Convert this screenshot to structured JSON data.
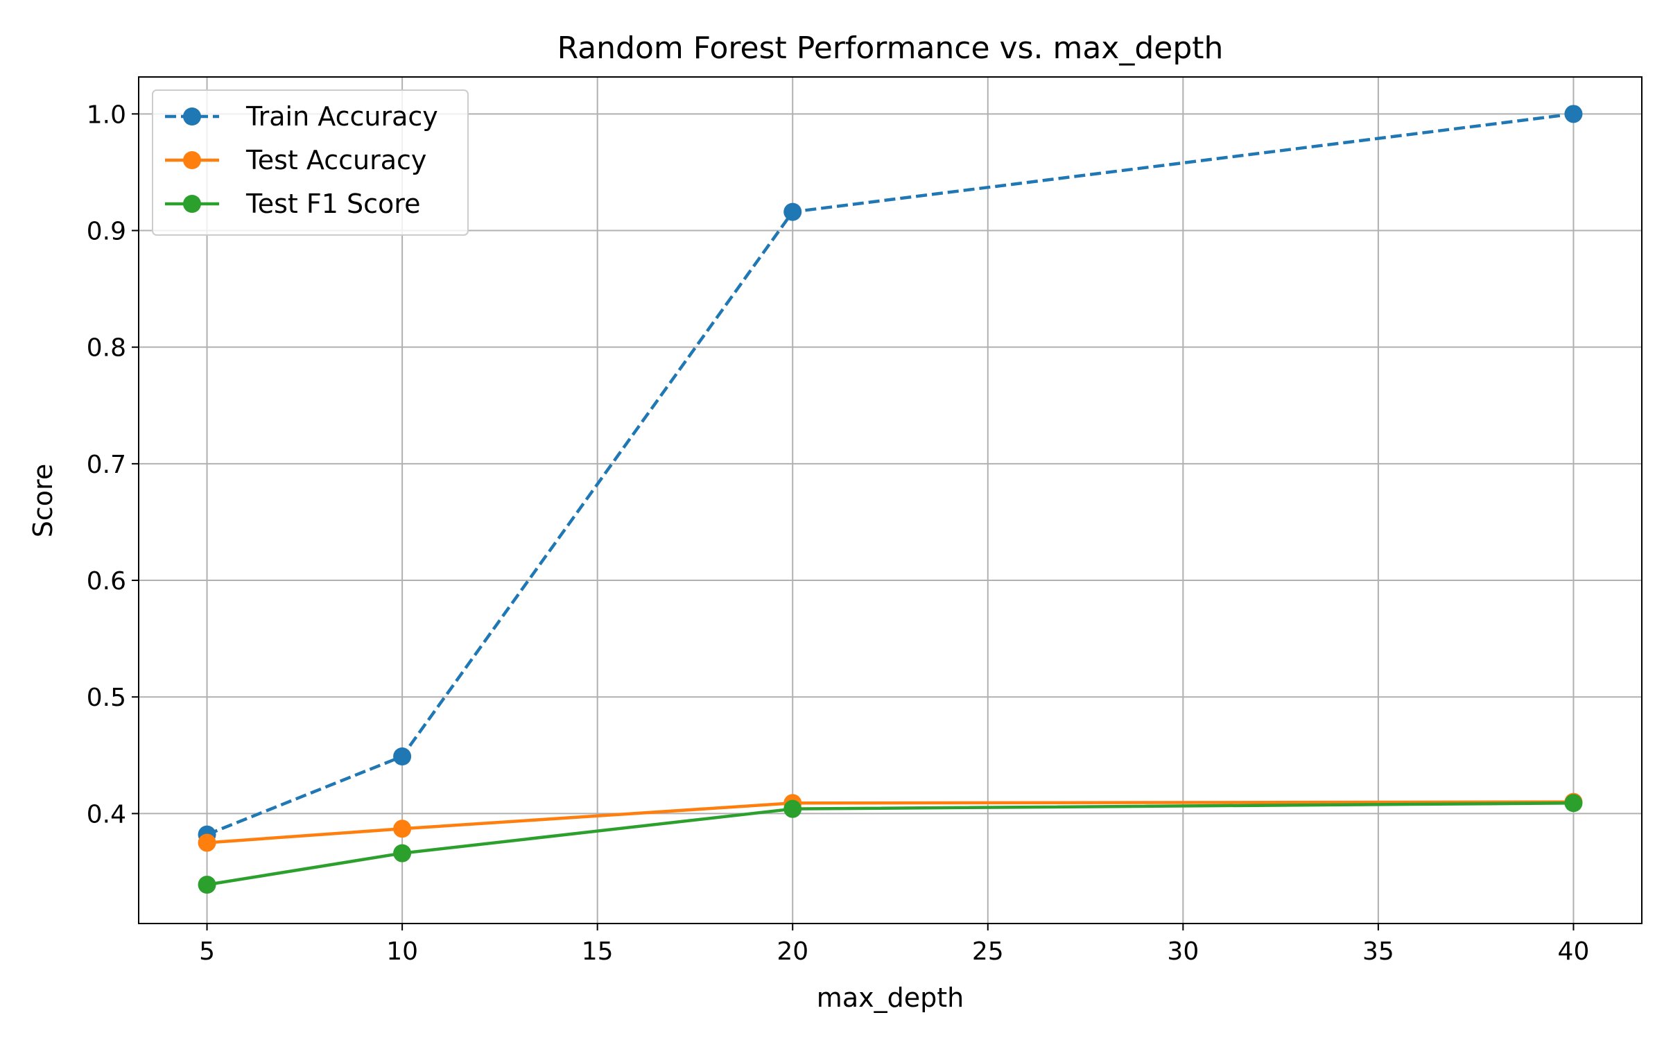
{
  "chart_data": {
    "type": "line",
    "title": "Random Forest Performance vs. max_depth",
    "xlabel": "max_depth",
    "ylabel": "Score",
    "x": [
      5,
      10,
      20,
      40
    ],
    "xlim": [
      3.25,
      41.75
    ],
    "ylim": [
      0.3057,
      1.0317
    ],
    "xticks": [
      5,
      10,
      15,
      20,
      25,
      30,
      35,
      40
    ],
    "yticks": [
      0.4,
      0.5,
      0.6,
      0.7,
      0.8,
      0.9,
      1.0
    ],
    "xtick_labels": [
      "5",
      "10",
      "15",
      "20",
      "25",
      "30",
      "35",
      "40"
    ],
    "ytick_labels": [
      "0.4",
      "0.5",
      "0.6",
      "0.7",
      "0.8",
      "0.9",
      "1.0"
    ],
    "grid": true,
    "legend_position": "top-left",
    "series": [
      {
        "name": "Train Accuracy",
        "values": [
          0.382,
          0.449,
          0.916,
          1.0
        ],
        "color": "#1f77b4",
        "line_style": "dashed",
        "marker": "circle"
      },
      {
        "name": "Test Accuracy",
        "values": [
          0.375,
          0.387,
          0.409,
          0.41
        ],
        "color": "#ff7f0e",
        "line_style": "solid",
        "marker": "circle"
      },
      {
        "name": "Test F1 Score",
        "values": [
          0.339,
          0.366,
          0.404,
          0.409
        ],
        "color": "#2ca02c",
        "line_style": "solid",
        "marker": "circle"
      }
    ]
  }
}
